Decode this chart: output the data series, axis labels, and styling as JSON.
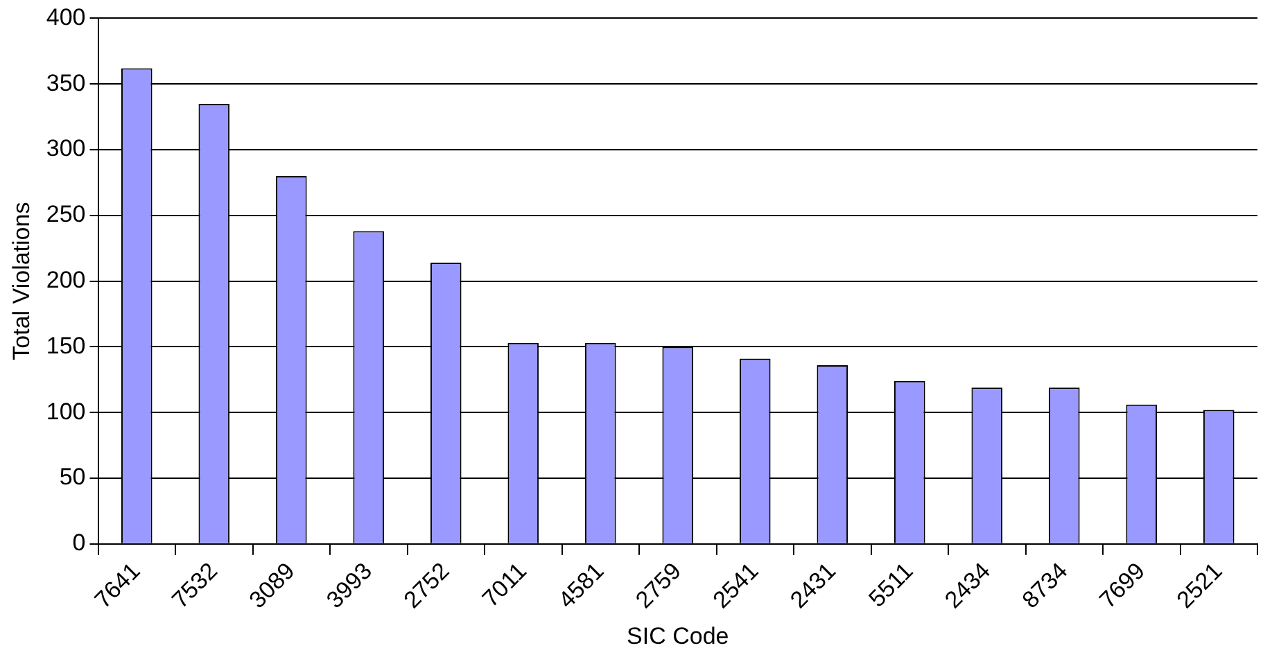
{
  "chart_data": {
    "type": "bar",
    "xlabel": "SIC Code",
    "ylabel": "Total Violations",
    "categories": [
      "7641",
      "7532",
      "3089",
      "3993",
      "2752",
      "7011",
      "4581",
      "2759",
      "2541",
      "2431",
      "5511",
      "2434",
      "8734",
      "7699",
      "2521"
    ],
    "values": [
      362,
      335,
      280,
      238,
      214,
      153,
      153,
      150,
      141,
      136,
      124,
      119,
      119,
      106,
      102
    ],
    "color": "#9999ff",
    "ylim": [
      0,
      400
    ],
    "yticks": [
      0,
      50,
      100,
      150,
      200,
      250,
      300,
      350,
      400
    ],
    "grid": "y",
    "legend": false
  }
}
